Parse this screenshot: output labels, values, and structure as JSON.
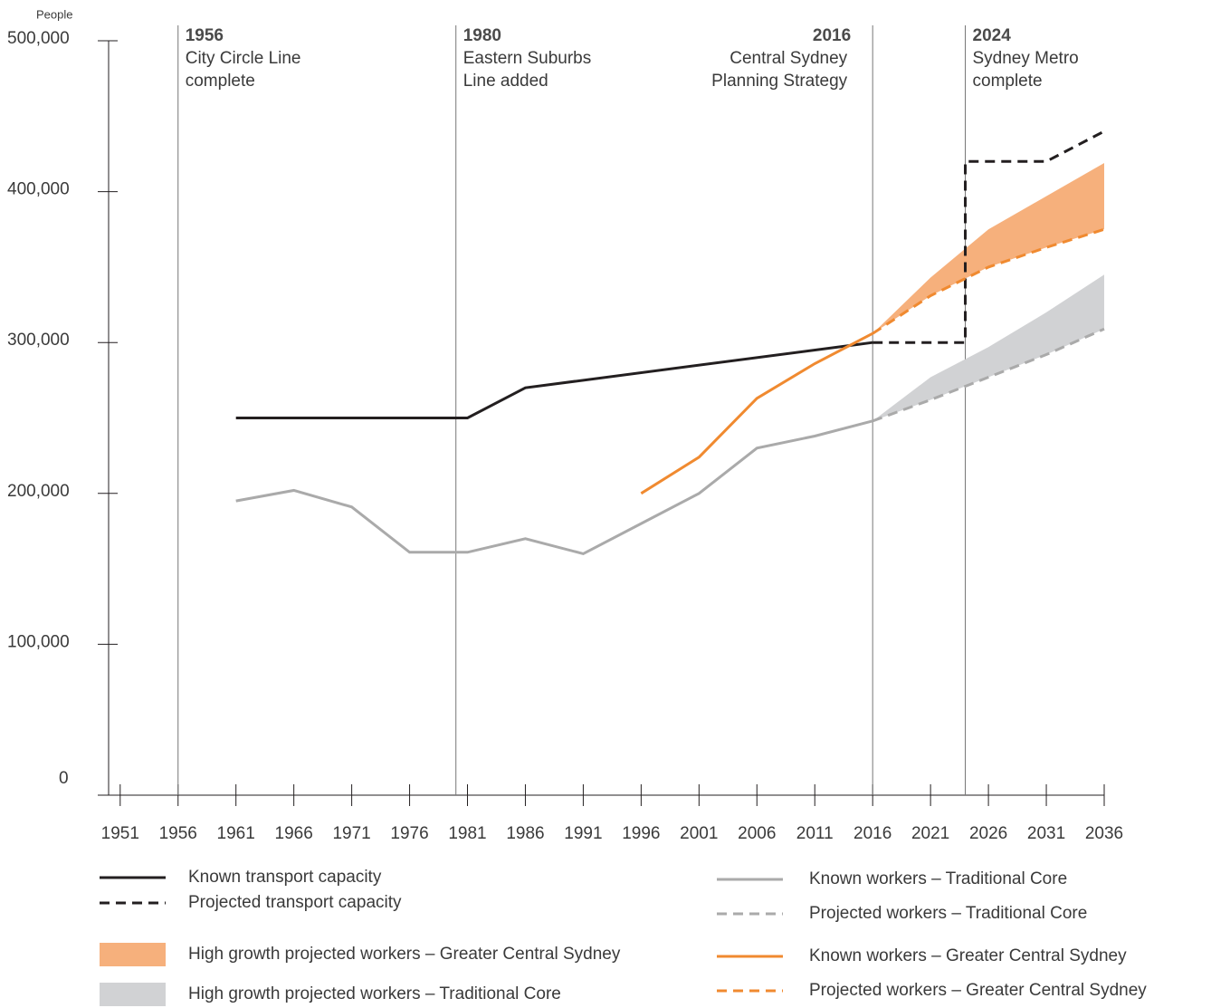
{
  "chart_data": {
    "type": "line",
    "y_label": "People",
    "xlim": [
      1950,
      2036
    ],
    "xticks": [
      1951,
      1956,
      1961,
      1966,
      1971,
      1976,
      1981,
      1986,
      1991,
      1996,
      2001,
      2006,
      2011,
      2016,
      2021,
      2026,
      2031,
      2036
    ],
    "ylim": [
      0,
      500000
    ],
    "yticks": [
      0,
      {
        "value": 100000,
        "label": "100,000"
      },
      {
        "value": 200000,
        "label": "200,000"
      },
      {
        "value": 300000,
        "label": "300,000"
      },
      {
        "value": 400000,
        "label": "400,000"
      },
      {
        "value": 500000,
        "label": "500,000"
      }
    ],
    "events": [
      {
        "x": 1956,
        "year": "1956",
        "lines": [
          "City Circle Line",
          "complete"
        ],
        "align": "right"
      },
      {
        "x": 1980,
        "year": "1980",
        "lines": [
          "Eastern Suburbs",
          "Line added"
        ],
        "align": "right"
      },
      {
        "x": 2016,
        "year": "2016",
        "lines": [
          "Central Sydney",
          "Planning Strategy"
        ],
        "align": "left"
      },
      {
        "x": 2024,
        "year": "2024",
        "lines": [
          "Sydney Metro",
          "complete"
        ],
        "align": "right"
      }
    ],
    "series": [
      {
        "name": "Known transport capacity",
        "color": "#231f20",
        "style": "solid",
        "x": [
          1961,
          1981,
          1986,
          2016
        ],
        "values": [
          250000,
          250000,
          270000,
          300000
        ]
      },
      {
        "name": "Projected transport capacity",
        "color": "#231f20",
        "style": "dashed",
        "x": [
          2016,
          2024,
          2024,
          2031,
          2036
        ],
        "values": [
          300000,
          300000,
          420000,
          420000,
          440000
        ]
      },
      {
        "name": "High growth projected workers – Greater Central Sydney",
        "color": "#f6b07c",
        "style": "band",
        "x": [
          2016,
          2021,
          2026,
          2031,
          2036
        ],
        "values": [
          306000,
          343000,
          375000,
          397000,
          419000
        ],
        "lower": [
          306000,
          331000,
          350000,
          363000,
          375000
        ]
      },
      {
        "name": "High growth projected workers – Traditional Core",
        "color": "#d1d2d4",
        "style": "band",
        "x": [
          2016,
          2021,
          2026,
          2031,
          2036
        ],
        "values": [
          248000,
          277000,
          297000,
          320000,
          345000
        ],
        "lower": [
          248000,
          262000,
          277000,
          292000,
          309000
        ]
      },
      {
        "name": "Known workers – Traditional Core",
        "color": "#aaaaaa",
        "style": "solid",
        "x": [
          1961,
          1966,
          1971,
          1976,
          1981,
          1986,
          1991,
          1996,
          2001,
          2006,
          2011,
          2016
        ],
        "values": [
          195000,
          202000,
          191000,
          161000,
          161000,
          170000,
          160000,
          180000,
          200000,
          230000,
          238000,
          248000
        ]
      },
      {
        "name": "Projected workers – Traditional Core",
        "color": "#aaaaaa",
        "style": "dashed",
        "x": [
          2016,
          2021,
          2026,
          2031,
          2036
        ],
        "values": [
          248000,
          262000,
          277000,
          292000,
          309000
        ]
      },
      {
        "name": "Known workers – Greater Central Sydney",
        "color": "#f08a30",
        "style": "solid",
        "x": [
          1996,
          2001,
          2006,
          2011,
          2016
        ],
        "values": [
          200000,
          224000,
          263000,
          286000,
          306000
        ]
      },
      {
        "name": "Projected workers – Greater Central Sydney",
        "color": "#f08a30",
        "style": "dashed",
        "x": [
          2016,
          2021,
          2026,
          2031,
          2036
        ],
        "values": [
          306000,
          331000,
          350000,
          363000,
          375000
        ]
      }
    ]
  }
}
